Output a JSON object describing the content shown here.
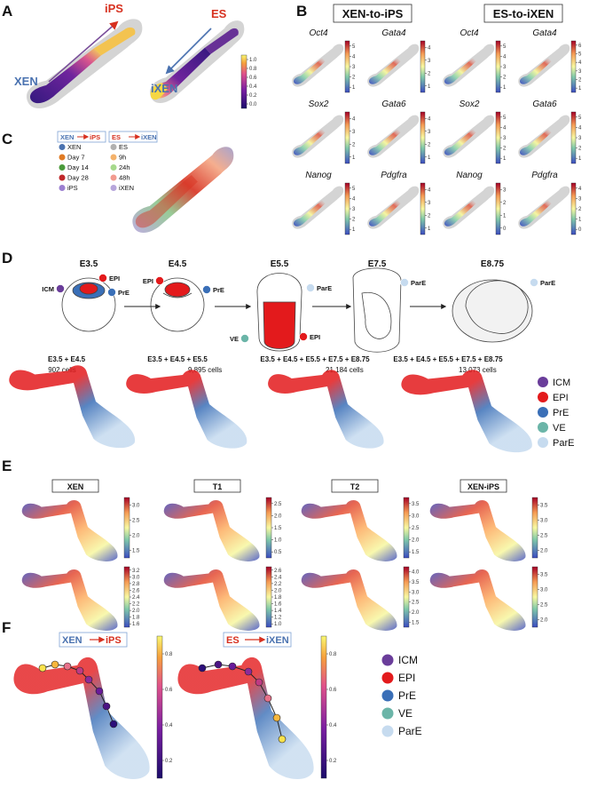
{
  "figure": {
    "panel_labels": [
      "A",
      "B",
      "C",
      "D",
      "E",
      "F"
    ],
    "A": {
      "plot1": {
        "start": "XEN",
        "end": "iPS"
      },
      "plot2": {
        "start": "ES",
        "end": "iXEN"
      },
      "colorbar_ticks": [
        "0.0",
        "0.2",
        "0.4",
        "0.6",
        "0.8",
        "1.0"
      ]
    },
    "B": {
      "headers": [
        "XEN-to-iPS",
        "ES-to-iXEN"
      ],
      "cells": [
        {
          "gene": "Oct4",
          "ticks": [
            "1",
            "2",
            "3",
            "4",
            "5"
          ]
        },
        {
          "gene": "Gata4",
          "ticks": [
            "1",
            "2",
            "3",
            "4"
          ]
        },
        {
          "gene": "Oct4",
          "ticks": [
            "1",
            "2",
            "3",
            "4",
            "5"
          ]
        },
        {
          "gene": "Gata4",
          "ticks": [
            "1",
            "2",
            "3",
            "4",
            "5",
            "6"
          ]
        },
        {
          "gene": "Sox2",
          "ticks": [
            "1",
            "2",
            "3",
            "4"
          ]
        },
        {
          "gene": "Gata6",
          "ticks": [
            "1",
            "2",
            "3",
            "4"
          ]
        },
        {
          "gene": "Sox2",
          "ticks": [
            "1",
            "2",
            "3",
            "4",
            "5"
          ]
        },
        {
          "gene": "Gata6",
          "ticks": [
            "1",
            "2",
            "3",
            "4",
            "5"
          ]
        },
        {
          "gene": "Nanog",
          "ticks": [
            "1",
            "2",
            "3",
            "4",
            "5"
          ]
        },
        {
          "gene": "Pdgfra",
          "ticks": [
            "1",
            "2",
            "3",
            "4"
          ]
        },
        {
          "gene": "Nanog",
          "ticks": [
            "0",
            "1",
            "2",
            "3"
          ]
        },
        {
          "gene": "Pdgfra",
          "ticks": [
            "0",
            "1",
            "2",
            "3",
            "4"
          ]
        }
      ]
    },
    "C": {
      "groups": [
        {
          "from": "XEN",
          "to": "iPS",
          "items": [
            "XEN",
            "Day 7",
            "Day 14",
            "Day 28",
            "iPS"
          ]
        },
        {
          "from": "ES",
          "to": "iXEN",
          "items": [
            "ES",
            "9h",
            "24h",
            "48h",
            "iXEN"
          ]
        }
      ]
    },
    "D": {
      "stages": [
        "E3.5",
        "E4.5",
        "E5.5",
        "E7.5",
        "E8.75"
      ],
      "diagram_labels": [
        [
          "ICM",
          "EPI",
          "PrE"
        ],
        [
          "EPI",
          "PrE"
        ],
        [
          "ParE",
          "VE",
          "EPI"
        ],
        [
          "ParE"
        ],
        [
          "ParE"
        ]
      ],
      "umaps": [
        {
          "title": "E3.5 + E4.5",
          "cells": "902 cells"
        },
        {
          "title": "E3.5 + E4.5 + E5.5",
          "cells": "9,895 cells"
        },
        {
          "title": "E3.5 + E4.5 + E5.5 + E7.5 + E8.75",
          "cells": "21,184 cells"
        },
        {
          "title": "E3.5 + E4.5 + E5.5 + E7.5 + E8.75",
          "cells": "13,073 cells"
        }
      ],
      "legend": [
        "ICM",
        "EPI",
        "PrE",
        "VE",
        "ParE"
      ]
    },
    "E": {
      "headers": [
        "XEN",
        "T1",
        "T2",
        "XEN-iPS"
      ],
      "top_ticks": [
        [
          "1.5",
          "2.0",
          "2.5",
          "3.0"
        ],
        [
          "0.5",
          "1.0",
          "1.5",
          "2.0",
          "2.5"
        ],
        [
          "1.5",
          "2.0",
          "2.5",
          "3.0",
          "3.5"
        ],
        [
          "2.0",
          "2.5",
          "3.0",
          "3.5"
        ]
      ],
      "bottom_ticks": [
        [
          "1.6",
          "1.8",
          "2.0",
          "2.2",
          "2.4",
          "2.6",
          "2.8",
          "3.0",
          "3.2"
        ],
        [
          "1.0",
          "1.2",
          "1.4",
          "1.6",
          "1.8",
          "2.0",
          "2.2",
          "2.4",
          "2.6"
        ],
        [
          "1.5",
          "2.0",
          "2.5",
          "3.0",
          "3.5",
          "4.0"
        ],
        [
          "2.0",
          "2.5",
          "3.0",
          "3.5"
        ]
      ]
    },
    "F": {
      "plots": [
        {
          "from": "XEN",
          "to": "iPS",
          "ticks": [
            "0.2",
            "0.4",
            "0.6",
            "0.8"
          ]
        },
        {
          "from": "ES",
          "to": "iXEN",
          "ticks": [
            "0.2",
            "0.4",
            "0.6",
            "0.8"
          ]
        }
      ],
      "legend": [
        "ICM",
        "EPI",
        "PrE",
        "VE",
        "ParE"
      ]
    }
  }
}
